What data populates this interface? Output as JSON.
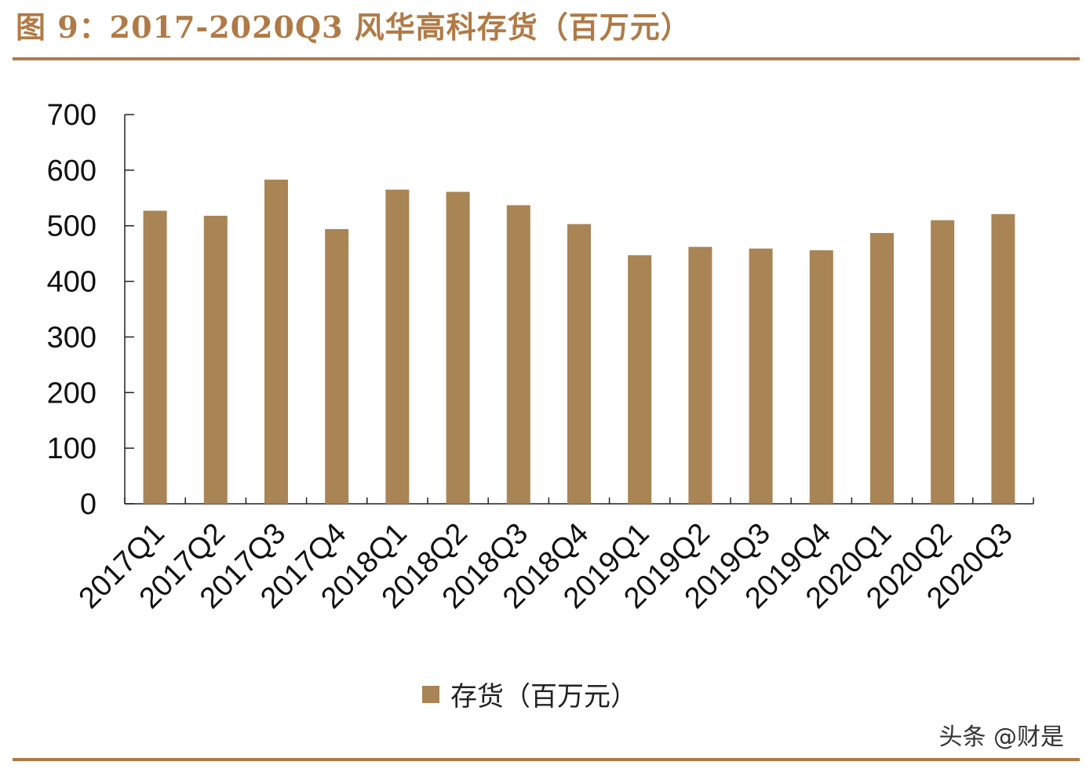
{
  "figure": {
    "title": "图 9：2017-2020Q3 风华高科存货（百万元）"
  },
  "legend": {
    "label": "存货（百万元）"
  },
  "watermark": "头条 @财是",
  "colors": {
    "bar": "#a98454",
    "accent": "#b07a46",
    "axis": "#222222"
  },
  "chart_data": {
    "type": "bar",
    "title": "2017-2020Q3 风华高科存货（百万元）",
    "xlabel": "",
    "ylabel": "",
    "categories": [
      "2017Q1",
      "2017Q2",
      "2017Q3",
      "2017Q4",
      "2018Q1",
      "2018Q2",
      "2018Q3",
      "2018Q4",
      "2019Q1",
      "2019Q2",
      "2019Q3",
      "2019Q4",
      "2020Q1",
      "2020Q2",
      "2020Q3"
    ],
    "series": [
      {
        "name": "存货（百万元）",
        "values": [
          527,
          518,
          583,
          494,
          565,
          561,
          537,
          503,
          447,
          462,
          459,
          456,
          487,
          510,
          521
        ]
      }
    ],
    "ylim": [
      0,
      700
    ],
    "yticks": [
      0,
      100,
      200,
      300,
      400,
      500,
      600,
      700
    ],
    "grid": false,
    "legend_position": "bottom-center"
  }
}
